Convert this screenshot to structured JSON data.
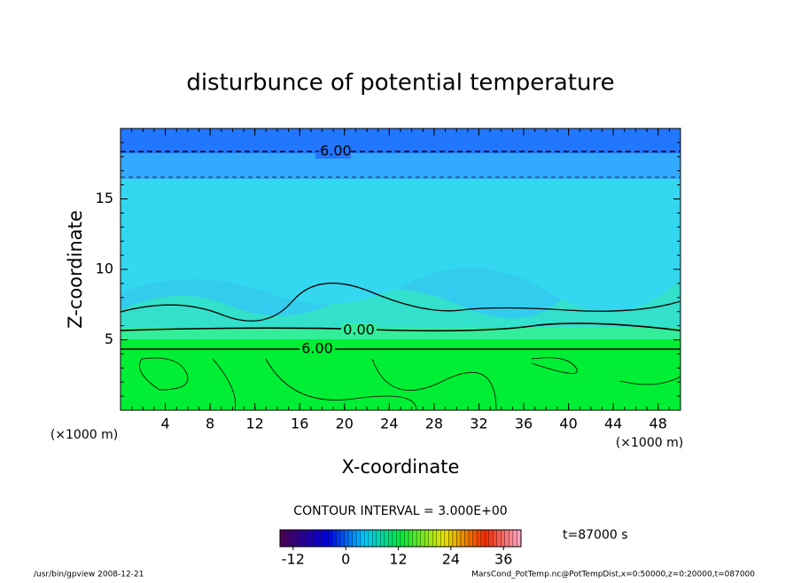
{
  "chart_data": {
    "type": "contour",
    "title": "disturbunce of potential temperature",
    "x_label": "X-coordinate",
    "y_label": "Z-coordinate",
    "x_unit_label": "(×1000 m)",
    "y_unit_label": "(×1000 m)",
    "xlim": [
      0,
      50
    ],
    "xticks": [
      4,
      8,
      12,
      16,
      20,
      24,
      28,
      32,
      36,
      40,
      44,
      48
    ],
    "ylim": [
      0,
      20
    ],
    "yticks": [
      5,
      10,
      15
    ],
    "contour_labels": [
      {
        "value": -6,
        "label": "-6.00"
      },
      {
        "value": 0,
        "label": "0.00"
      },
      {
        "value": 6,
        "label": "6.00"
      }
    ],
    "contour_interval_label": "CONTOUR INTERVAL = 3.000E+00",
    "colorbar": {
      "lim": [
        -15,
        40
      ],
      "ticks": [
        -12,
        0,
        12,
        24,
        36
      ]
    },
    "time_label": "t=87000 s",
    "footer_left": "/usr/bin/gpview  2008-12-21",
    "footer_right": "MarsCond_PotTemp.nc@PotTempDist,x=0:50000,z=0:20000,t=087000"
  }
}
